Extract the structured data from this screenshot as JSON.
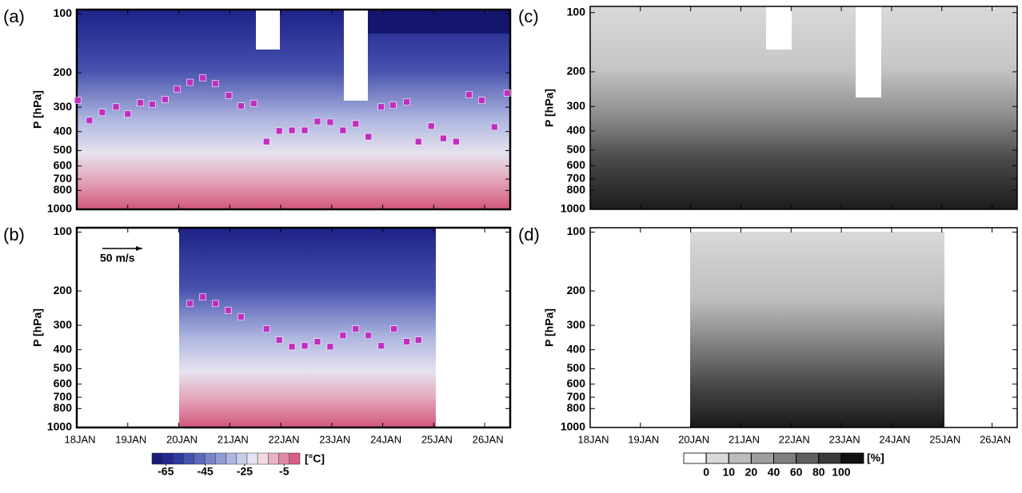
{
  "chart_data": [
    {
      "type": "contour",
      "panel_label": "(a)",
      "ylabel": "P [hPa]",
      "xlim": [
        18,
        26.5
      ],
      "ylim": [
        1000,
        95
      ],
      "log_y": true,
      "yticks": [
        100,
        200,
        300,
        400,
        500,
        600,
        700,
        800,
        1000
      ],
      "xticks": [
        18,
        19,
        20,
        21,
        22,
        23,
        24,
        25,
        26
      ],
      "markers": {
        "color": "#c02ec0",
        "x": [
          18.02,
          18.25,
          18.5,
          18.77,
          19.0,
          19.25,
          19.48,
          19.73,
          19.97,
          20.22,
          20.47,
          20.72,
          20.98,
          21.22,
          21.47,
          21.72,
          21.97,
          22.22,
          22.47,
          22.72,
          22.97,
          23.22,
          23.47,
          23.72,
          23.97,
          24.2,
          24.47,
          24.7,
          24.95,
          25.19,
          25.44,
          25.69,
          25.94,
          26.19,
          26.44
        ],
        "values": [
          277,
          351,
          319,
          299,
          325,
          285,
          290,
          274,
          242,
          224,
          212,
          227,
          261,
          296,
          287,
          450,
          397,
          394,
          394,
          355,
          358,
          394,
          365,
          425,
          299,
          293,
          282,
          450,
          375,
          433,
          450,
          259,
          277,
          379,
          254
        ]
      }
    },
    {
      "type": "contour",
      "panel_label": "(b)",
      "ylabel": "P [hPa]",
      "xlim": [
        18,
        26.5
      ],
      "ylim": [
        1000,
        95
      ],
      "log_y": true,
      "yticks": [
        100,
        200,
        300,
        400,
        500,
        600,
        700,
        800,
        1000
      ],
      "xticks": [
        {
          "value": 18,
          "label": "18JAN"
        },
        {
          "value": 19,
          "label": "19JAN"
        },
        {
          "value": 20,
          "label": "20JAN"
        },
        {
          "value": 21,
          "label": "21JAN"
        },
        {
          "value": 22,
          "label": "22JAN"
        },
        {
          "value": 23,
          "label": "23JAN"
        },
        {
          "value": 24,
          "label": "24JAN"
        },
        {
          "value": 25,
          "label": "25JAN"
        },
        {
          "value": 26,
          "label": "26JAN"
        }
      ],
      "markers": {
        "color": "#c02ec0",
        "x": [
          20.22,
          20.47,
          20.72,
          20.97,
          21.22,
          21.72,
          21.97,
          22.22,
          22.47,
          22.72,
          22.97,
          23.22,
          23.47,
          23.72,
          23.97,
          24.22,
          24.47,
          24.7
        ],
        "values": [
          232,
          215,
          232,
          252,
          272,
          313,
          357,
          386,
          382,
          364,
          386,
          338,
          313,
          338,
          382,
          313,
          364,
          357
        ]
      }
    },
    {
      "type": "contour",
      "panel_label": "(c)",
      "ylabel": "P [hPa]",
      "xlim": [
        18,
        26.5
      ],
      "ylim": [
        1000,
        93
      ],
      "log_y": true,
      "yticks": [
        100,
        200,
        300,
        400,
        500,
        600,
        700,
        800,
        1000
      ],
      "xticks": [
        18,
        19,
        20,
        21,
        22,
        23,
        24,
        25,
        26
      ]
    },
    {
      "type": "contour",
      "panel_label": "(d)",
      "ylabel": "P [hPa]",
      "xlim": [
        18,
        26.5
      ],
      "ylim": [
        1000,
        95
      ],
      "log_y": true,
      "yticks": [
        100,
        200,
        300,
        400,
        500,
        600,
        700,
        800,
        1000
      ],
      "xticks": [
        {
          "value": 18,
          "label": "18JAN"
        },
        {
          "value": 19,
          "label": "19JAN"
        },
        {
          "value": 20,
          "label": "20JAN"
        },
        {
          "value": 21,
          "label": "21JAN"
        },
        {
          "value": 22,
          "label": "22JAN"
        },
        {
          "value": 23,
          "label": "23JAN"
        },
        {
          "value": 24,
          "label": "24JAN"
        },
        {
          "value": 25,
          "label": "25JAN"
        },
        {
          "value": 26,
          "label": "26JAN"
        }
      ]
    }
  ],
  "wind_reference": "50 m/s",
  "colorbars": [
    {
      "unit_label": "[°C]",
      "lim": [
        -72,
        3
      ],
      "ticks": [
        -65,
        -45,
        -25,
        -5
      ],
      "colors": [
        "#1a1a7a",
        "#23288f",
        "#2f3a9e",
        "#4552ad",
        "#5c6abb",
        "#7683c8",
        "#919dd4",
        "#adb6e0",
        "#c9cfeb",
        "#e2e4f2",
        "#f0dbe2",
        "#e8b3c4",
        "#df8aa5",
        "#d65e83"
      ]
    },
    {
      "unit_label": "[%]",
      "levels": [
        0,
        10,
        20,
        40,
        60,
        80,
        100
      ],
      "colors": [
        "#ffffff",
        "#d9d9d9",
        "#bdbdbd",
        "#9e9e9e",
        "#7f7f7f",
        "#5e5e5e",
        "#3a3a3a",
        "#111111"
      ]
    }
  ]
}
